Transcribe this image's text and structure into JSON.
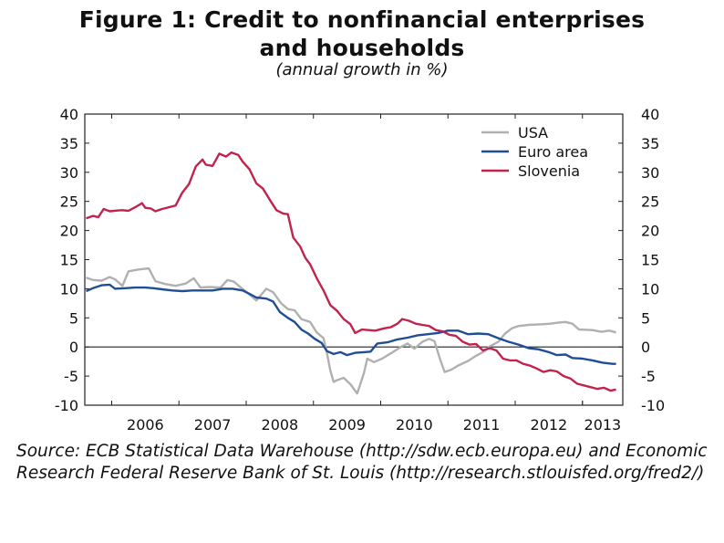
{
  "title_line1": "Figure 1: Credit to nonfinancial enterprises",
  "title_line2": "and households",
  "subtitle": "(annual growth in %)",
  "source": "Source: ECB Statistical Data Warehouse (http://sdw.ecb.europa.eu) and Economic Research Federal Reserve Bank of St. Louis (http://research.stlouisfed.org/fred2/)",
  "chart_data": {
    "type": "line",
    "x_categories": [
      "2006",
      "2007",
      "2008",
      "2009",
      "2010",
      "2011",
      "2012",
      "2013"
    ],
    "x_range": [
      2005.6,
      2013.6
    ],
    "ylim": [
      -10,
      40
    ],
    "yticks": [
      40,
      35,
      30,
      25,
      20,
      15,
      10,
      5,
      0,
      -5,
      -10
    ],
    "grid": false,
    "legend_position": "top-right",
    "series": [
      {
        "name": "USA",
        "color": "#b0b0b0",
        "points": [
          [
            2005.62,
            11.9
          ],
          [
            2005.72,
            11.5
          ],
          [
            2005.85,
            11.4
          ],
          [
            2005.97,
            12.0
          ],
          [
            2006.05,
            11.6
          ],
          [
            2006.16,
            10.5
          ],
          [
            2006.25,
            13.0
          ],
          [
            2006.4,
            13.3
          ],
          [
            2006.55,
            13.5
          ],
          [
            2006.65,
            11.3
          ],
          [
            2006.8,
            10.8
          ],
          [
            2006.95,
            10.5
          ],
          [
            2007.1,
            10.9
          ],
          [
            2007.22,
            11.8
          ],
          [
            2007.32,
            10.2
          ],
          [
            2007.45,
            10.3
          ],
          [
            2007.62,
            10.2
          ],
          [
            2007.72,
            11.5
          ],
          [
            2007.82,
            11.2
          ],
          [
            2007.92,
            10.2
          ],
          [
            2008.02,
            9.3
          ],
          [
            2008.15,
            8.0
          ],
          [
            2008.3,
            10.0
          ],
          [
            2008.4,
            9.4
          ],
          [
            2008.52,
            7.5
          ],
          [
            2008.62,
            6.5
          ],
          [
            2008.72,
            6.3
          ],
          [
            2008.82,
            4.8
          ],
          [
            2008.95,
            4.3
          ],
          [
            2009.05,
            2.5
          ],
          [
            2009.15,
            1.5
          ],
          [
            2009.2,
            -1.0
          ],
          [
            2009.25,
            -4.0
          ],
          [
            2009.3,
            -6.0
          ],
          [
            2009.35,
            -5.7
          ],
          [
            2009.45,
            -5.3
          ],
          [
            2009.55,
            -6.4
          ],
          [
            2009.65,
            -8.0
          ],
          [
            2009.75,
            -4.5
          ],
          [
            2009.8,
            -2.0
          ],
          [
            2009.9,
            -2.6
          ],
          [
            2010.02,
            -2.0
          ],
          [
            2010.15,
            -1.1
          ],
          [
            2010.3,
            0.0
          ],
          [
            2010.4,
            0.6
          ],
          [
            2010.5,
            -0.3
          ],
          [
            2010.62,
            0.9
          ],
          [
            2010.72,
            1.4
          ],
          [
            2010.8,
            1.0
          ],
          [
            2010.88,
            -2.0
          ],
          [
            2010.95,
            -4.3
          ],
          [
            2011.05,
            -3.9
          ],
          [
            2011.15,
            -3.2
          ],
          [
            2011.3,
            -2.4
          ],
          [
            2011.42,
            -1.5
          ],
          [
            2011.55,
            -0.7
          ],
          [
            2011.62,
            0.1
          ],
          [
            2011.75,
            0.9
          ],
          [
            2011.85,
            2.3
          ],
          [
            2011.95,
            3.2
          ],
          [
            2012.05,
            3.6
          ],
          [
            2012.2,
            3.8
          ],
          [
            2012.4,
            3.9
          ],
          [
            2012.52,
            4.0
          ],
          [
            2012.65,
            4.2
          ],
          [
            2012.75,
            4.3
          ],
          [
            2012.85,
            4.0
          ],
          [
            2012.95,
            3.0
          ],
          [
            2013.15,
            2.9
          ],
          [
            2013.28,
            2.6
          ],
          [
            2013.4,
            2.8
          ],
          [
            2013.5,
            2.5
          ]
        ]
      },
      {
        "name": "Euro area",
        "color": "#1f4e96",
        "points": [
          [
            2005.62,
            9.6
          ],
          [
            2005.72,
            10.1
          ],
          [
            2005.85,
            10.6
          ],
          [
            2005.97,
            10.7
          ],
          [
            2006.05,
            10.0
          ],
          [
            2006.2,
            10.1
          ],
          [
            2006.35,
            10.2
          ],
          [
            2006.5,
            10.2
          ],
          [
            2006.62,
            10.1
          ],
          [
            2006.75,
            9.9
          ],
          [
            2006.9,
            9.7
          ],
          [
            2007.05,
            9.6
          ],
          [
            2007.2,
            9.7
          ],
          [
            2007.35,
            9.7
          ],
          [
            2007.5,
            9.7
          ],
          [
            2007.65,
            10.0
          ],
          [
            2007.8,
            10.0
          ],
          [
            2007.95,
            9.7
          ],
          [
            2008.05,
            9.1
          ],
          [
            2008.15,
            8.5
          ],
          [
            2008.3,
            8.3
          ],
          [
            2008.4,
            7.8
          ],
          [
            2008.5,
            6.0
          ],
          [
            2008.62,
            5.0
          ],
          [
            2008.72,
            4.3
          ],
          [
            2008.82,
            3.0
          ],
          [
            2008.92,
            2.3
          ],
          [
            2009.02,
            1.4
          ],
          [
            2009.12,
            0.7
          ],
          [
            2009.2,
            -0.7
          ],
          [
            2009.3,
            -1.2
          ],
          [
            2009.4,
            -0.9
          ],
          [
            2009.5,
            -1.4
          ],
          [
            2009.62,
            -1.0
          ],
          [
            2009.75,
            -0.9
          ],
          [
            2009.85,
            -0.8
          ],
          [
            2009.95,
            0.6
          ],
          [
            2010.1,
            0.8
          ],
          [
            2010.25,
            1.3
          ],
          [
            2010.4,
            1.6
          ],
          [
            2010.55,
            2.0
          ],
          [
            2010.7,
            2.2
          ],
          [
            2010.85,
            2.4
          ],
          [
            2011.0,
            2.8
          ],
          [
            2011.15,
            2.8
          ],
          [
            2011.3,
            2.2
          ],
          [
            2011.45,
            2.3
          ],
          [
            2011.6,
            2.2
          ],
          [
            2011.75,
            1.5
          ],
          [
            2011.9,
            0.9
          ],
          [
            2012.05,
            0.4
          ],
          [
            2012.2,
            -0.2
          ],
          [
            2012.35,
            -0.4
          ],
          [
            2012.5,
            -0.9
          ],
          [
            2012.62,
            -1.4
          ],
          [
            2012.75,
            -1.3
          ],
          [
            2012.85,
            -1.9
          ],
          [
            2013.0,
            -2.0
          ],
          [
            2013.15,
            -2.3
          ],
          [
            2013.3,
            -2.7
          ],
          [
            2013.45,
            -2.9
          ],
          [
            2013.5,
            -2.9
          ]
        ]
      },
      {
        "name": "Slovenia",
        "color": "#c0244c",
        "points": [
          [
            2005.62,
            22.1
          ],
          [
            2005.72,
            22.5
          ],
          [
            2005.8,
            22.3
          ],
          [
            2005.88,
            23.7
          ],
          [
            2005.97,
            23.3
          ],
          [
            2006.05,
            23.4
          ],
          [
            2006.15,
            23.5
          ],
          [
            2006.25,
            23.4
          ],
          [
            2006.35,
            24.0
          ],
          [
            2006.45,
            24.7
          ],
          [
            2006.5,
            23.9
          ],
          [
            2006.58,
            23.8
          ],
          [
            2006.65,
            23.3
          ],
          [
            2006.75,
            23.7
          ],
          [
            2006.85,
            24.0
          ],
          [
            2006.95,
            24.3
          ],
          [
            2007.05,
            26.5
          ],
          [
            2007.15,
            28.0
          ],
          [
            2007.25,
            31.0
          ],
          [
            2007.35,
            32.2
          ],
          [
            2007.4,
            31.3
          ],
          [
            2007.5,
            31.1
          ],
          [
            2007.6,
            33.2
          ],
          [
            2007.7,
            32.7
          ],
          [
            2007.78,
            33.4
          ],
          [
            2007.88,
            33.0
          ],
          [
            2007.95,
            31.8
          ],
          [
            2008.05,
            30.5
          ],
          [
            2008.15,
            28.1
          ],
          [
            2008.25,
            27.2
          ],
          [
            2008.35,
            25.3
          ],
          [
            2008.45,
            23.5
          ],
          [
            2008.55,
            22.9
          ],
          [
            2008.62,
            22.8
          ],
          [
            2008.7,
            18.8
          ],
          [
            2008.8,
            17.3
          ],
          [
            2008.88,
            15.3
          ],
          [
            2008.95,
            14.2
          ],
          [
            2009.05,
            11.8
          ],
          [
            2009.15,
            9.7
          ],
          [
            2009.25,
            7.2
          ],
          [
            2009.35,
            6.2
          ],
          [
            2009.45,
            4.8
          ],
          [
            2009.55,
            3.9
          ],
          [
            2009.62,
            2.4
          ],
          [
            2009.72,
            3.0
          ],
          [
            2009.82,
            2.9
          ],
          [
            2009.92,
            2.8
          ],
          [
            2010.05,
            3.2
          ],
          [
            2010.15,
            3.4
          ],
          [
            2010.25,
            4.0
          ],
          [
            2010.32,
            4.8
          ],
          [
            2010.42,
            4.5
          ],
          [
            2010.52,
            4.0
          ],
          [
            2010.62,
            3.8
          ],
          [
            2010.72,
            3.6
          ],
          [
            2010.82,
            2.9
          ],
          [
            2010.92,
            2.7
          ],
          [
            2011.02,
            2.1
          ],
          [
            2011.12,
            1.9
          ],
          [
            2011.22,
            0.9
          ],
          [
            2011.32,
            0.4
          ],
          [
            2011.42,
            0.5
          ],
          [
            2011.52,
            -0.6
          ],
          [
            2011.62,
            -0.2
          ],
          [
            2011.72,
            -0.6
          ],
          [
            2011.82,
            -2.0
          ],
          [
            2011.92,
            -2.3
          ],
          [
            2012.02,
            -2.3
          ],
          [
            2012.12,
            -2.9
          ],
          [
            2012.22,
            -3.2
          ],
          [
            2012.32,
            -3.7
          ],
          [
            2012.42,
            -4.3
          ],
          [
            2012.52,
            -4.0
          ],
          [
            2012.62,
            -4.2
          ],
          [
            2012.72,
            -5.0
          ],
          [
            2012.82,
            -5.4
          ],
          [
            2012.92,
            -6.3
          ],
          [
            2013.02,
            -6.6
          ],
          [
            2013.12,
            -6.9
          ],
          [
            2013.22,
            -7.2
          ],
          [
            2013.32,
            -7.0
          ],
          [
            2013.42,
            -7.5
          ],
          [
            2013.5,
            -7.3
          ]
        ]
      }
    ]
  }
}
